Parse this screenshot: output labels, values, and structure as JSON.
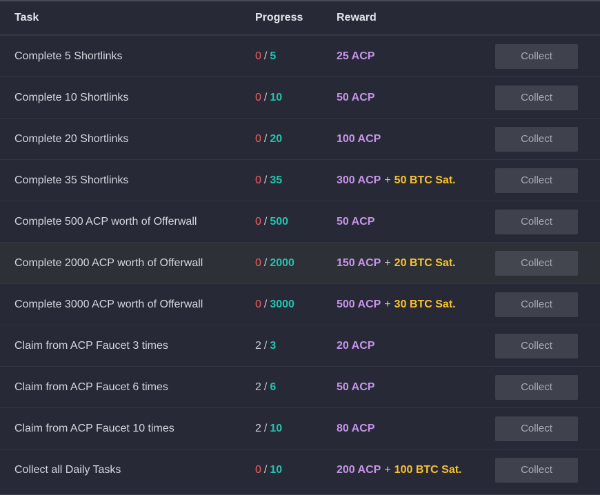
{
  "header": {
    "task": "Task",
    "progress": "Progress",
    "reward": "Reward"
  },
  "tasks": [
    {
      "task": "Complete 5 Shortlinks",
      "current": "0",
      "total": "5",
      "acp": "25 ACP",
      "btc": "",
      "button": "Collect"
    },
    {
      "task": "Complete 10 Shortlinks",
      "current": "0",
      "total": "10",
      "acp": "50 ACP",
      "btc": "",
      "button": "Collect"
    },
    {
      "task": "Complete 20 Shortlinks",
      "current": "0",
      "total": "20",
      "acp": "100 ACP",
      "btc": "",
      "button": "Collect"
    },
    {
      "task": "Complete 35 Shortlinks",
      "current": "0",
      "total": "35",
      "acp": "300 ACP",
      "btc": "50 BTC Sat.",
      "button": "Collect"
    },
    {
      "task": "Complete 500 ACP worth of Offerwall",
      "current": "0",
      "total": "500",
      "acp": "50 ACP",
      "btc": "",
      "button": "Collect"
    },
    {
      "task": "Complete 2000 ACP worth of Offerwall",
      "current": "0",
      "total": "2000",
      "acp": "150 ACP",
      "btc": "20 BTC Sat.",
      "button": "Collect"
    },
    {
      "task": "Complete 3000 ACP worth of Offerwall",
      "current": "0",
      "total": "3000",
      "acp": "500 ACP",
      "btc": "30 BTC Sat.",
      "button": "Collect"
    },
    {
      "task": "Claim from ACP Faucet 3 times",
      "current": "2",
      "total": "3",
      "acp": "20 ACP",
      "btc": "",
      "button": "Collect"
    },
    {
      "task": "Claim from ACP Faucet 6 times",
      "current": "2",
      "total": "6",
      "acp": "50 ACP",
      "btc": "",
      "button": "Collect"
    },
    {
      "task": "Claim from ACP Faucet 10 times",
      "current": "2",
      "total": "10",
      "acp": "80 ACP",
      "btc": "",
      "button": "Collect"
    },
    {
      "task": "Collect all Daily Tasks",
      "current": "0",
      "total": "10",
      "acp": "200 ACP",
      "btc": "100 BTC Sat.",
      "button": "Collect"
    }
  ],
  "highlighted_row": 5,
  "colors": {
    "background": "#272a36",
    "progress_zero": "#f0605c",
    "progress_total": "#22c4ae",
    "reward_acp": "#c694e8",
    "reward_btc": "#f8c22c",
    "button_bg": "#3f424d"
  }
}
